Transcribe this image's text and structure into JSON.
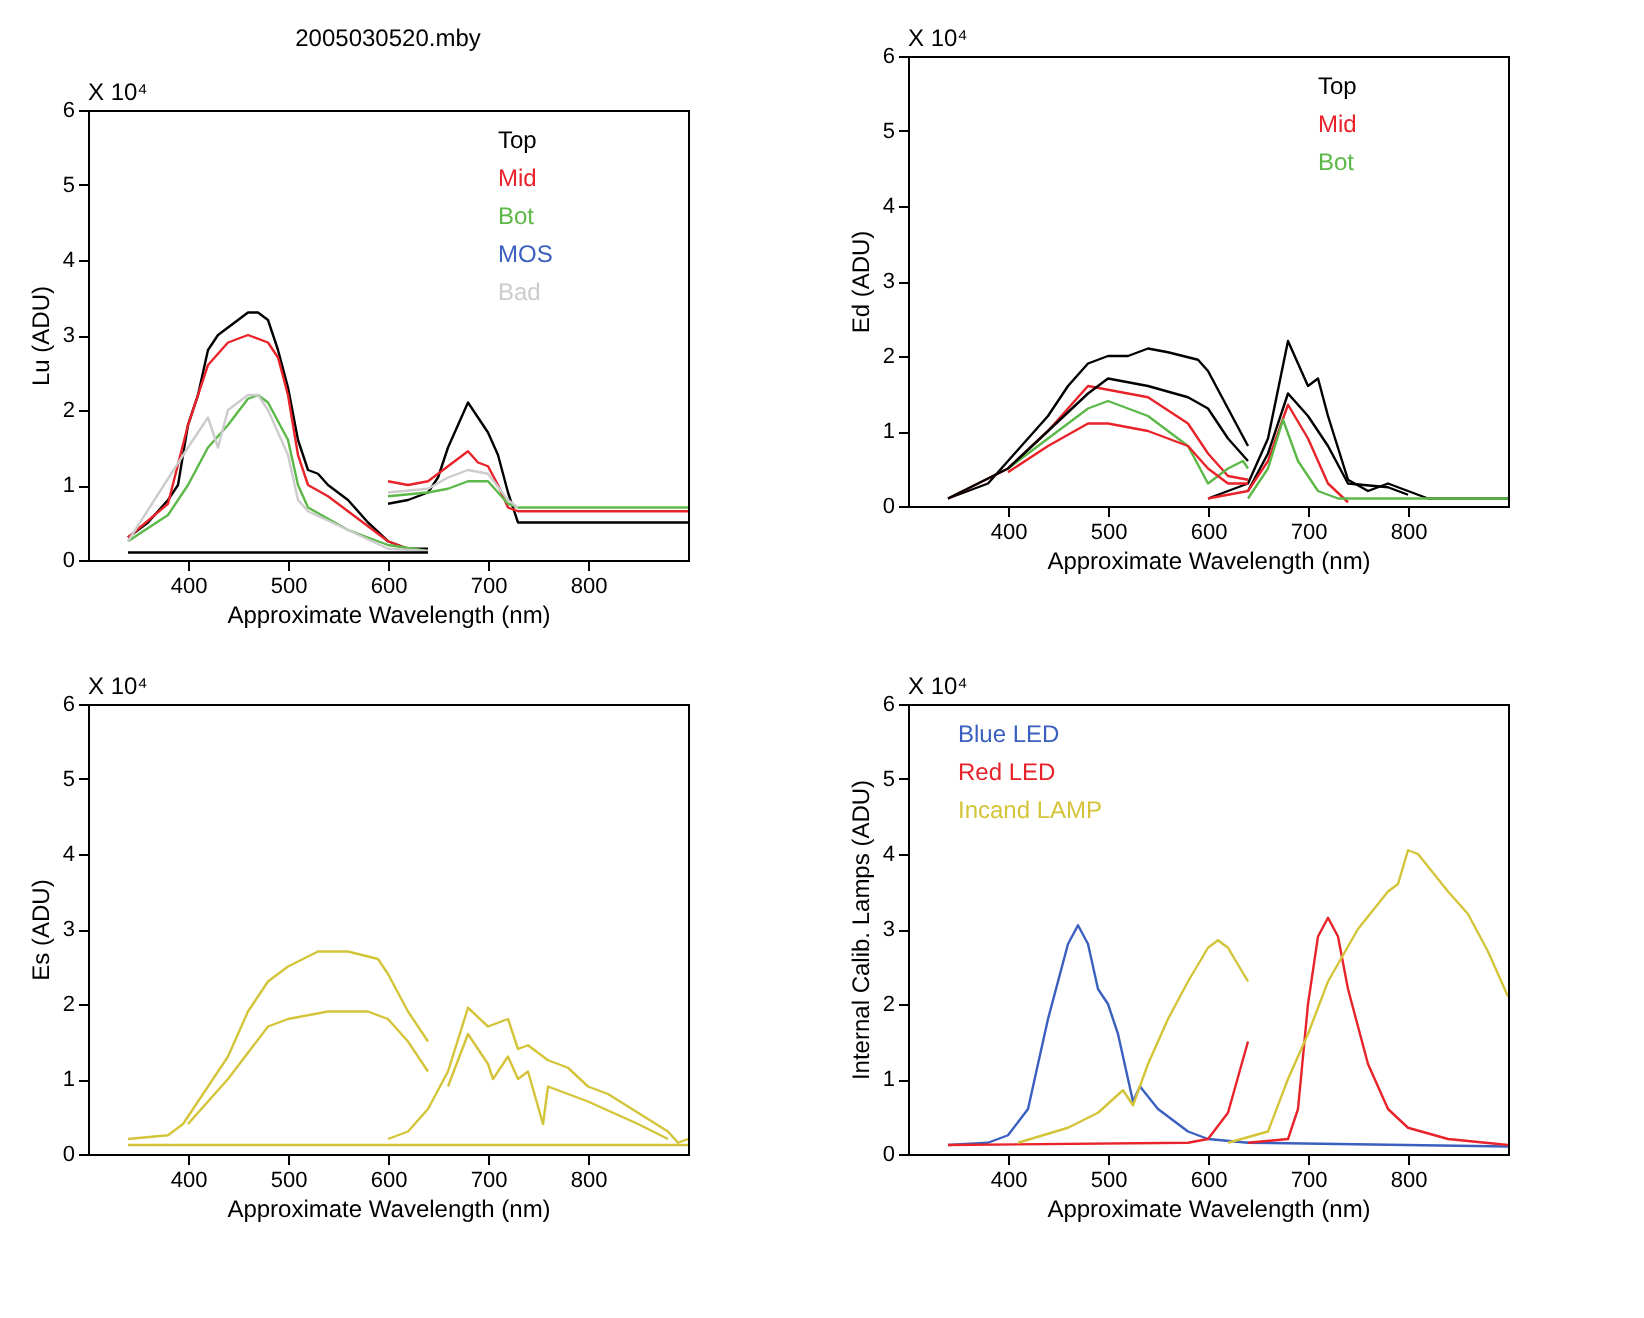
{
  "chart_data": [
    {
      "type": "line",
      "title": "2005030520.mby",
      "xlabel": "Approximate Wavelength (nm)",
      "ylabel": "Lu (ADU)",
      "annotations": [
        "X 10⁴"
      ],
      "xlim": [
        300,
        900
      ],
      "xticks": [
        400,
        500,
        600,
        700,
        800
      ],
      "ylim": [
        0,
        6
      ],
      "yticks": [
        0,
        1,
        2,
        3,
        4,
        5,
        6
      ],
      "grid": false,
      "legend": "top right",
      "series": [
        {
          "name": "Top",
          "color": "#000000",
          "x": [
            340,
            360,
            380,
            390,
            395,
            400,
            410,
            420,
            430,
            440,
            450,
            460,
            470,
            480,
            490,
            500,
            510,
            520,
            530,
            540,
            560,
            580,
            600,
            620,
            640
          ],
          "values": [
            0.3,
            0.5,
            0.8,
            1.0,
            1.4,
            1.8,
            2.2,
            2.8,
            3.0,
            3.1,
            3.2,
            3.3,
            3.3,
            3.2,
            2.8,
            2.3,
            1.6,
            1.2,
            1.15,
            1.0,
            0.8,
            0.5,
            0.25,
            0.15,
            0.15
          ]
        },
        {
          "name": "Mid",
          "color": "#e8232a",
          "x": [
            340,
            380,
            400,
            420,
            440,
            460,
            480,
            490,
            500,
            510,
            520,
            540,
            560,
            580,
            600,
            620,
            640
          ],
          "values": [
            0.3,
            0.75,
            1.8,
            2.6,
            2.9,
            3.0,
            2.9,
            2.7,
            2.2,
            1.4,
            1.0,
            0.85,
            0.65,
            0.45,
            0.25,
            0.15,
            0.12
          ]
        },
        {
          "name": "Bot",
          "color": "#5cb848",
          "x": [
            340,
            380,
            400,
            420,
            440,
            460,
            470,
            480,
            500,
            510,
            520,
            560,
            600,
            640
          ],
          "values": [
            0.25,
            0.6,
            1.0,
            1.5,
            1.8,
            2.15,
            2.2,
            2.1,
            1.6,
            1.0,
            0.7,
            0.4,
            0.2,
            0.12
          ]
        },
        {
          "name": "MOS",
          "color": "#3a5fbf"
        },
        {
          "name": "Bad",
          "color": "#cccccc",
          "x": [
            340,
            400,
            420,
            430,
            440,
            460,
            470,
            480,
            500,
            510,
            520,
            560,
            600,
            640
          ],
          "values": [
            0.25,
            1.5,
            1.9,
            1.5,
            2.0,
            2.2,
            2.2,
            2.0,
            1.4,
            0.8,
            0.65,
            0.4,
            0.15,
            0.12
          ]
        },
        {
          "color": "#000000",
          "x": [
            340,
            640
          ],
          "values": [
            0.1,
            0.1
          ]
        },
        {
          "color": "#000000",
          "x": [
            600,
            620,
            640,
            650,
            660,
            670,
            680,
            690,
            700,
            710,
            720,
            730,
            740,
            900
          ],
          "values": [
            0.75,
            0.8,
            0.9,
            1.1,
            1.5,
            1.8,
            2.1,
            1.9,
            1.7,
            1.4,
            0.9,
            0.5,
            0.5,
            0.5
          ]
        },
        {
          "color": "#e8232a",
          "x": [
            600,
            620,
            640,
            660,
            680,
            690,
            700,
            710,
            720,
            730,
            900
          ],
          "values": [
            1.05,
            1.0,
            1.05,
            1.25,
            1.45,
            1.3,
            1.25,
            1.0,
            0.7,
            0.65,
            0.65
          ]
        },
        {
          "color": "#5cb848",
          "x": [
            600,
            640,
            660,
            680,
            700,
            720,
            730,
            900
          ],
          "values": [
            0.85,
            0.9,
            0.95,
            1.05,
            1.05,
            0.75,
            0.7,
            0.7
          ]
        },
        {
          "color": "#cccccc",
          "x": [
            600,
            640,
            660,
            680,
            700,
            720,
            730
          ],
          "values": [
            0.9,
            0.95,
            1.1,
            1.2,
            1.15,
            0.8,
            0.7
          ]
        }
      ]
    },
    {
      "type": "line",
      "xlabel": "Approximate Wavelength (nm)",
      "ylabel": "Ed (ADU)",
      "annotations": [
        "X 10⁴"
      ],
      "xlim": [
        300,
        900
      ],
      "xticks": [
        400,
        500,
        600,
        700,
        800
      ],
      "ylim": [
        0,
        6
      ],
      "yticks": [
        0,
        1,
        2,
        3,
        4,
        5,
        6
      ],
      "grid": false,
      "legend": "top right",
      "series": [
        {
          "name": "Top",
          "color": "#000000",
          "x": [
            340,
            380,
            400,
            440,
            460,
            480,
            500,
            520,
            540,
            560,
            590,
            600,
            620,
            640
          ],
          "values": [
            0.1,
            0.3,
            0.6,
            1.2,
            1.6,
            1.9,
            2.0,
            2.0,
            2.1,
            2.05,
            1.95,
            1.8,
            1.3,
            0.8
          ]
        },
        {
          "name": "Mid",
          "color": "#e8232a",
          "x": [
            340,
            400,
            440,
            480,
            500,
            540,
            580,
            600,
            620,
            640
          ],
          "values": [
            0.1,
            0.5,
            1.0,
            1.6,
            1.55,
            1.45,
            1.1,
            0.7,
            0.4,
            0.35
          ]
        },
        {
          "name": "Bot",
          "color": "#5cb848",
          "x": [
            400,
            440,
            480,
            500,
            540,
            580,
            600,
            620,
            635,
            640
          ],
          "values": [
            0.5,
            0.9,
            1.3,
            1.4,
            1.2,
            0.8,
            0.3,
            0.5,
            0.6,
            0.5
          ]
        },
        {
          "color": "#000000",
          "x": [
            340,
            400,
            440,
            480,
            500,
            540,
            580,
            600,
            620,
            640
          ],
          "values": [
            0.1,
            0.5,
            1.0,
            1.5,
            1.7,
            1.6,
            1.45,
            1.3,
            0.9,
            0.6
          ]
        },
        {
          "color": "#000000",
          "x": [
            600,
            640,
            660,
            680,
            690,
            700,
            710,
            720,
            740,
            760,
            780,
            800,
            820,
            900
          ],
          "values": [
            0.1,
            0.3,
            0.9,
            2.2,
            1.9,
            1.6,
            1.7,
            1.2,
            0.35,
            0.2,
            0.3,
            0.2,
            0.1,
            0.1
          ]
        },
        {
          "color": "#000000",
          "x": [
            640,
            660,
            680,
            700,
            710,
            720,
            740,
            780,
            800
          ],
          "values": [
            0.2,
            0.7,
            1.5,
            1.2,
            1.0,
            0.8,
            0.3,
            0.25,
            0.15
          ]
        },
        {
          "color": "#e8232a",
          "x": [
            400,
            440,
            480,
            500,
            540,
            580,
            600,
            620,
            640
          ],
          "values": [
            0.45,
            0.8,
            1.1,
            1.1,
            1.0,
            0.8,
            0.5,
            0.3,
            0.3
          ]
        },
        {
          "color": "#e8232a",
          "x": [
            600,
            640,
            660,
            680,
            700,
            720,
            740
          ],
          "values": [
            0.1,
            0.2,
            0.6,
            1.35,
            0.9,
            0.3,
            0.05
          ]
        },
        {
          "color": "#5cb848",
          "x": [
            640,
            660,
            675,
            690,
            710,
            730,
            900
          ],
          "values": [
            0.1,
            0.5,
            1.15,
            0.6,
            0.2,
            0.1,
            0.1
          ]
        }
      ]
    },
    {
      "type": "line",
      "xlabel": "Approximate Wavelength (nm)",
      "ylabel": "Es (ADU)",
      "annotations": [
        "X 10⁴"
      ],
      "xlim": [
        300,
        900
      ],
      "xticks": [
        400,
        500,
        600,
        700,
        800
      ],
      "ylim": [
        0,
        6
      ],
      "yticks": [
        0,
        1,
        2,
        3,
        4,
        5,
        6
      ],
      "grid": false,
      "series": [
        {
          "color": "#d4c43a",
          "x": [
            340,
            380,
            395,
            410,
            440,
            460,
            480,
            500,
            530,
            560,
            590,
            600,
            620,
            640
          ],
          "values": [
            0.2,
            0.25,
            0.4,
            0.7,
            1.3,
            1.9,
            2.3,
            2.5,
            2.7,
            2.7,
            2.6,
            2.4,
            1.9,
            1.5
          ]
        },
        {
          "color": "#d4c43a",
          "x": [
            400,
            440,
            480,
            500,
            540,
            580,
            600,
            620,
            640
          ],
          "values": [
            0.4,
            1.0,
            1.7,
            1.8,
            1.9,
            1.9,
            1.8,
            1.5,
            1.1
          ]
        },
        {
          "color": "#d4c43a",
          "x": [
            600,
            620,
            640,
            660,
            680,
            700,
            720,
            730,
            740,
            760,
            780,
            800,
            820,
            850,
            880,
            890,
            900
          ],
          "values": [
            0.2,
            0.3,
            0.6,
            1.1,
            1.95,
            1.7,
            1.8,
            1.4,
            1.45,
            1.25,
            1.15,
            0.9,
            0.8,
            0.55,
            0.3,
            0.15,
            0.2
          ]
        },
        {
          "color": "#d4c43a",
          "x": [
            660,
            680,
            700,
            705,
            720,
            730,
            740,
            755,
            760,
            800,
            850,
            880
          ],
          "values": [
            0.9,
            1.6,
            1.2,
            1.0,
            1.3,
            1.0,
            1.1,
            0.4,
            0.9,
            0.7,
            0.4,
            0.2
          ]
        },
        {
          "color": "#d4c43a",
          "x": [
            340,
            900
          ],
          "values": [
            0.12,
            0.12
          ]
        }
      ]
    },
    {
      "type": "line",
      "xlabel": "Approximate Wavelength (nm)",
      "ylabel": "Internal Calib. Lamps (ADU)",
      "annotations": [
        "X 10⁴"
      ],
      "xlim": [
        300,
        900
      ],
      "xticks": [
        400,
        500,
        600,
        700,
        800
      ],
      "ylim": [
        0,
        6
      ],
      "yticks": [
        0,
        1,
        2,
        3,
        4,
        5,
        6
      ],
      "grid": false,
      "legend": "top left",
      "series": [
        {
          "name": "Blue LED",
          "color": "#3a5fbf",
          "x": [
            340,
            380,
            400,
            420,
            440,
            460,
            470,
            480,
            490,
            500,
            510,
            520,
            525,
            532,
            550,
            580,
            600,
            640,
            900
          ],
          "values": [
            0.12,
            0.15,
            0.25,
            0.6,
            1.8,
            2.8,
            3.05,
            2.8,
            2.2,
            2.0,
            1.6,
            1.0,
            0.7,
            0.9,
            0.6,
            0.3,
            0.2,
            0.15,
            0.1
          ]
        },
        {
          "name": "Red LED",
          "color": "#e8232a",
          "x": [
            340,
            580,
            600,
            620,
            640
          ],
          "values": [
            0.12,
            0.15,
            0.2,
            0.55,
            1.5
          ]
        },
        {
          "name": "Incand LAMP",
          "color": "#d4c43a",
          "x": [
            410,
            460,
            490,
            515,
            525,
            540,
            560,
            580,
            600,
            610,
            620,
            640
          ],
          "values": [
            0.15,
            0.35,
            0.55,
            0.85,
            0.65,
            1.2,
            1.8,
            2.3,
            2.75,
            2.85,
            2.75,
            2.3
          ]
        },
        {
          "color": "#e8232a",
          "x": [
            640,
            680,
            690,
            700,
            710,
            720,
            730,
            740,
            760,
            780,
            800,
            840,
            900
          ],
          "values": [
            0.15,
            0.2,
            0.6,
            2.0,
            2.9,
            3.15,
            2.9,
            2.2,
            1.2,
            0.6,
            0.35,
            0.2,
            0.12
          ]
        },
        {
          "color": "#d4c43a",
          "x": [
            620,
            660,
            680,
            700,
            720,
            750,
            780,
            790,
            800,
            810,
            840,
            860,
            880,
            900
          ],
          "values": [
            0.15,
            0.3,
            1.0,
            1.6,
            2.3,
            3.0,
            3.5,
            3.6,
            4.05,
            4.0,
            3.5,
            3.2,
            2.7,
            2.1
          ]
        }
      ]
    }
  ]
}
